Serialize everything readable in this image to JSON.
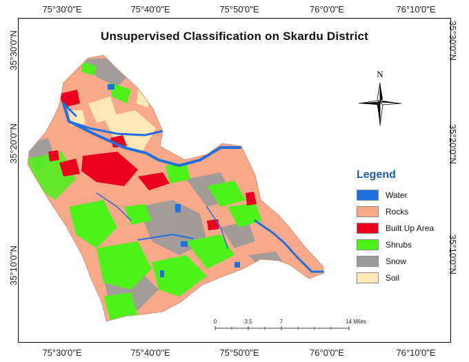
{
  "title": "Unsupervised Classification on Skardu District",
  "coordinates": {
    "top": [
      "75°30'0\"E",
      "75°40'0\"E",
      "75°50'0\"E",
      "76°0'0\"E",
      "76°10'0\"E"
    ],
    "bottom": [
      "75°30'0\"E",
      "75°40'0\"E",
      "75°50'0\"E",
      "76°0'0\"E",
      "76°10'0\"E"
    ],
    "left": [
      "35°30'0\"N",
      "35°20'0\"N",
      "35°10'0\"N"
    ],
    "right": [
      "35°30'0\"N",
      "35°20'0\"N",
      "35°10'0\"N"
    ]
  },
  "north_arrow": {
    "label": "N",
    "icon": "north-arrow-icon"
  },
  "legend": {
    "title": "Legend",
    "items": [
      {
        "label": "Water",
        "color": "#1f6fe0"
      },
      {
        "label": "Rocks",
        "color": "#f7a98a"
      },
      {
        "label": "Built Up Area",
        "color": "#e8001c"
      },
      {
        "label": "Shrubs",
        "color": "#4cf21a"
      },
      {
        "label": "Snow",
        "color": "#9a9a9a"
      },
      {
        "label": "Soil",
        "color": "#fde8b8"
      }
    ]
  },
  "scale_bar": {
    "labels": [
      "0",
      "3.5",
      "7",
      "14 Miles"
    ],
    "values": [
      0,
      3.5,
      7,
      14
    ]
  }
}
